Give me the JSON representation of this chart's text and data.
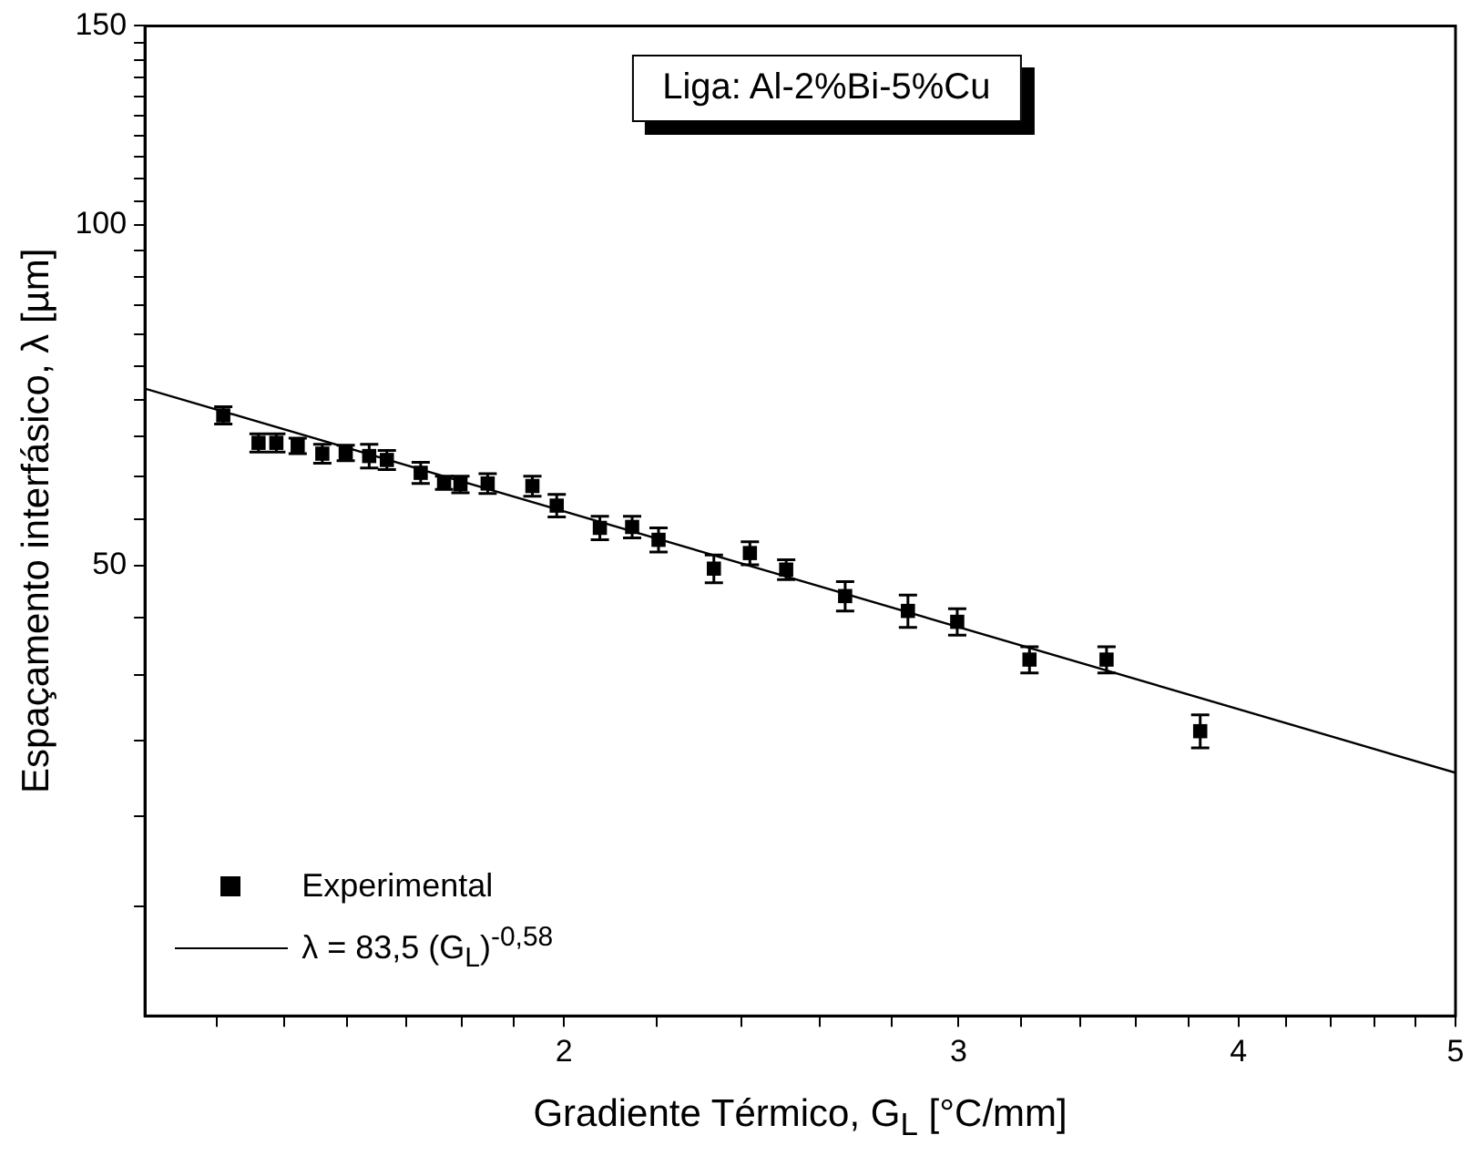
{
  "chart_data": {
    "type": "scatter",
    "xlabel": "Gradiente Térmico, G$_{L}$ [°C/mm]",
    "ylabel": "Espaçamento interfásico, λ [µm]",
    "annotations": [
      "Liga: Al-2%Bi-5%Cu"
    ],
    "log": "xy",
    "grid": false,
    "legend": "bottom left",
    "xlim": [
      1.3,
      5
    ],
    "xticks": [
      {
        "value": 1.4,
        "label": null
      },
      {
        "value": 1.5,
        "label": null
      },
      {
        "value": 1.6,
        "label": null
      },
      {
        "value": 1.7,
        "label": null
      },
      {
        "value": 1.8,
        "label": null
      },
      {
        "value": 1.9,
        "label": null
      },
      2,
      {
        "value": 2.2,
        "label": null
      },
      {
        "value": 2.4,
        "label": null
      },
      {
        "value": 2.6,
        "label": null
      },
      {
        "value": 2.8,
        "label": null
      },
      3,
      {
        "value": 3.2,
        "label": null
      },
      {
        "value": 3.4,
        "label": null
      },
      {
        "value": 3.6,
        "label": null
      },
      {
        "value": 3.8,
        "label": null
      },
      4,
      {
        "value": 4.2,
        "label": null
      },
      {
        "value": 4.4,
        "label": null
      },
      {
        "value": 4.6,
        "label": null
      },
      {
        "value": 4.8,
        "label": null
      },
      5
    ],
    "ylim": [
      20,
      150
    ],
    "yticks": [
      {
        "value": 25,
        "label": null
      },
      {
        "value": 30,
        "label": null
      },
      {
        "value": 35,
        "label": null
      },
      {
        "value": 40,
        "label": null
      },
      {
        "value": 45,
        "label": null
      },
      50,
      {
        "value": 55,
        "label": null
      },
      {
        "value": 60,
        "label": null
      },
      {
        "value": 65,
        "label": null
      },
      {
        "value": 70,
        "label": null
      },
      {
        "value": 75,
        "label": null
      },
      {
        "value": 80,
        "label": null
      },
      {
        "value": 85,
        "label": null
      },
      {
        "value": 90,
        "label": null
      },
      {
        "value": 95,
        "label": null
      },
      100,
      {
        "value": 105,
        "label": null
      },
      {
        "value": 110,
        "label": null
      },
      {
        "value": 115,
        "label": null
      },
      {
        "value": 120,
        "label": null
      },
      {
        "value": 125,
        "label": null
      },
      {
        "value": 130,
        "label": null
      },
      {
        "value": 135,
        "label": null
      },
      {
        "value": 140,
        "label": null
      },
      {
        "value": 145,
        "label": null
      },
      150
    ],
    "series": [
      {
        "name": "Experimental",
        "type": "scatter",
        "color": "#000000",
        "marker": "square",
        "x": [
          1.409,
          1.461,
          1.488,
          1.521,
          1.56,
          1.598,
          1.637,
          1.667,
          1.726,
          1.768,
          1.798,
          1.849,
          1.936,
          1.985,
          2.075,
          2.145,
          2.204,
          2.333,
          2.421,
          2.513,
          2.67,
          2.848,
          2.996,
          3.227,
          3.493,
          3.846
        ],
        "values": [
          67.9,
          64.2,
          64.2,
          63.8,
          62.8,
          62.9,
          62.5,
          62.0,
          60.4,
          59.2,
          59.0,
          59.1,
          58.8,
          56.5,
          54.0,
          54.1,
          52.7,
          49.7,
          51.3,
          49.6,
          47.0,
          45.6,
          44.6,
          41.3,
          41.3,
          35.7
        ],
        "errors": [
          1.2,
          1.2,
          1.2,
          1.0,
          1.2,
          1.0,
          1.5,
          1.2,
          1.3,
          0.8,
          1.0,
          1.2,
          1.2,
          1.3,
          1.3,
          1.2,
          1.3,
          1.4,
          1.2,
          1.0,
          1.4,
          1.5,
          1.2,
          1.1,
          1.1,
          1.2
        ]
      },
      {
        "name": "λ = 83,5 (G$_{L}$)$^{-0,58}$",
        "type": "line",
        "color": "#000000",
        "marker": "none",
        "line_style": "solid",
        "x": [
          1.3,
          5
        ],
        "values": [
          71.7,
          32.8
        ]
      }
    ]
  }
}
